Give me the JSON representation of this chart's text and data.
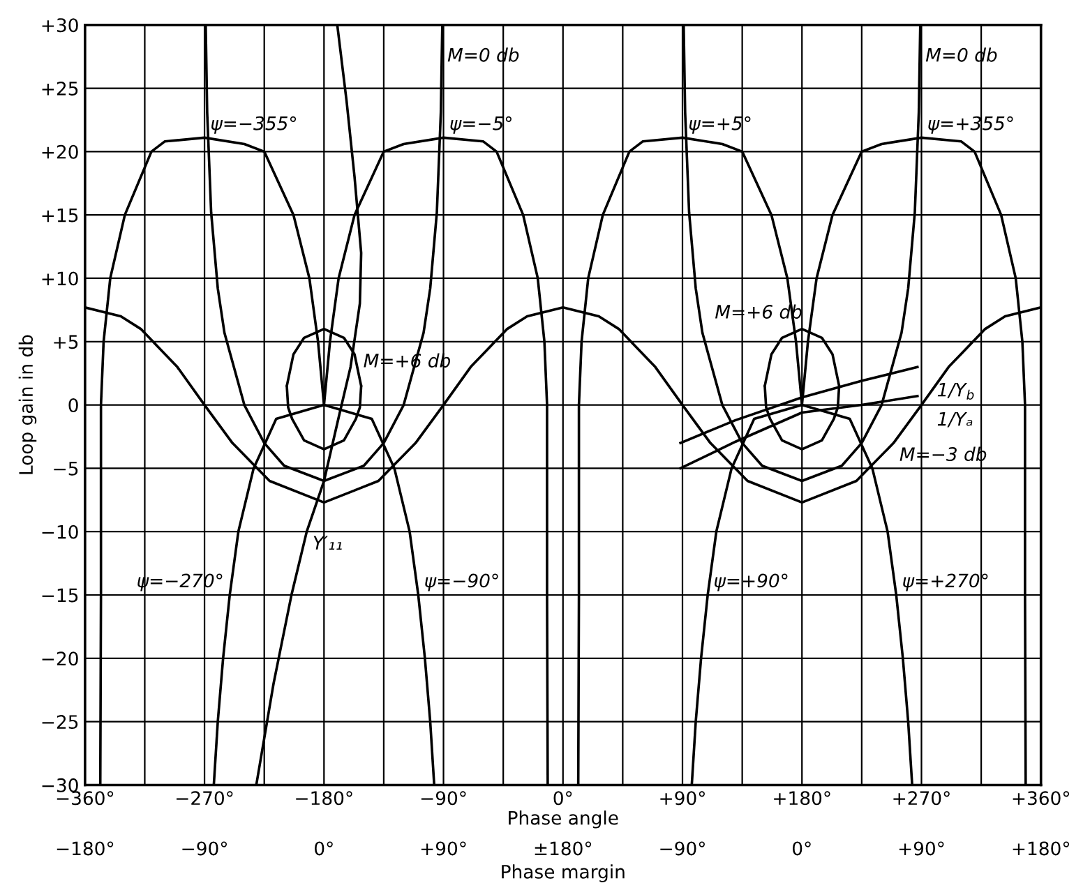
{
  "chart_data": {
    "type": "line",
    "xlabel": "Phase angle",
    "ylabel": "Loop gain in db",
    "xlim": [
      -360,
      360
    ],
    "ylim": [
      -30,
      30
    ],
    "xticks": [
      {
        "value": -360,
        "label": "−360°"
      },
      {
        "value": -315,
        "label": null
      },
      {
        "value": -270,
        "label": "−270°"
      },
      {
        "value": -225,
        "label": null
      },
      {
        "value": -180,
        "label": "−180°"
      },
      {
        "value": -135,
        "label": null
      },
      {
        "value": -90,
        "label": "−90°"
      },
      {
        "value": -45,
        "label": null
      },
      {
        "value": 0,
        "label": "0°"
      },
      {
        "value": 45,
        "label": null
      },
      {
        "value": 90,
        "label": "+90°"
      },
      {
        "value": 135,
        "label": null
      },
      {
        "value": 180,
        "label": "+180°"
      },
      {
        "value": 225,
        "label": null
      },
      {
        "value": 270,
        "label": "+270°"
      },
      {
        "value": 315,
        "label": null
      },
      {
        "value": 360,
        "label": "+360°"
      }
    ],
    "yticks": [
      {
        "value": -30,
        "label": "−30"
      },
      {
        "value": -25,
        "label": "−25"
      },
      {
        "value": -20,
        "label": "−20"
      },
      {
        "value": -15,
        "label": "−15"
      },
      {
        "value": -10,
        "label": "−10"
      },
      {
        "value": -5,
        "label": "−5"
      },
      0,
      {
        "value": 5,
        "label": "+5"
      },
      {
        "value": 10,
        "label": "+10"
      },
      {
        "value": 15,
        "label": "+15"
      },
      {
        "value": 20,
        "label": "+20"
      },
      {
        "value": 25,
        "label": "+25"
      },
      {
        "value": 30,
        "label": "+30"
      }
    ],
    "grid": true,
    "legend": false,
    "marker": "none",
    "line_style": "solid",
    "series": [
      {
        "color": "#000000",
        "x": [
          -348.5,
          -348,
          -348,
          -346,
          -341,
          -330,
          -310,
          -300,
          -270,
          -240,
          -225,
          -203,
          -191,
          -184.5,
          -180
        ],
        "values": [
          -30,
          -15,
          0,
          5,
          10,
          15,
          20,
          20.8,
          21.1,
          20.6,
          20,
          15,
          10,
          5,
          0
        ]
      },
      {
        "color": "#000000",
        "x": [
          -180,
          -175.5,
          -169,
          -157,
          -135,
          -120,
          -90,
          -60,
          -50,
          -30,
          -19,
          -14,
          -12,
          -12,
          -11.5
        ],
        "values": [
          0,
          5,
          10,
          15,
          20,
          20.6,
          21.1,
          20.8,
          20,
          15,
          10,
          5,
          0,
          -15,
          -30
        ]
      },
      {
        "color": "#000000",
        "x": [
          11.5,
          12,
          12,
          14,
          19,
          30,
          50,
          60,
          90,
          120,
          135,
          157,
          169,
          175.5,
          180
        ],
        "values": [
          -30,
          -15,
          0,
          5,
          10,
          15,
          20,
          20.8,
          21.1,
          20.6,
          20,
          15,
          10,
          5,
          0
        ]
      },
      {
        "color": "#000000",
        "x": [
          180,
          184.5,
          191,
          203,
          225,
          240,
          270,
          300,
          310,
          330,
          341,
          346,
          348,
          348,
          348.5
        ],
        "values": [
          0,
          5,
          10,
          15,
          20,
          20.6,
          21.1,
          20.8,
          20,
          15,
          10,
          5,
          0,
          -15,
          -30
        ]
      },
      {
        "color": "#000000",
        "x": [
          -360,
          -333,
          -318,
          -290.5,
          -270,
          -249,
          -221,
          -180,
          -139,
          -111,
          -90,
          -69.5,
          -42,
          -27,
          0,
          27,
          42,
          69.5,
          90,
          111,
          139,
          180,
          221,
          249,
          270,
          290.5,
          318,
          333,
          360
        ],
        "values": [
          7.7,
          7,
          6,
          3,
          0,
          -3,
          -6,
          -7.7,
          -6,
          -3,
          0,
          3,
          6,
          7,
          7.7,
          7,
          6,
          3,
          0,
          -3,
          -6,
          -7.7,
          -6,
          -3,
          0,
          3,
          6,
          7,
          7.7
        ]
      },
      {
        "color": "#000000",
        "x": [
          -269.1,
          -268,
          -265,
          -260,
          -255,
          -240,
          -225,
          -210,
          -180,
          -150,
          -135,
          -120,
          -105,
          -100,
          -95,
          -92,
          -90.9
        ],
        "values": [
          30,
          23.1,
          15.2,
          9.2,
          5.7,
          0,
          -3,
          -4.8,
          -6,
          -4.8,
          -3,
          0,
          5.7,
          9.2,
          15.2,
          23.1,
          30
        ]
      },
      {
        "color": "#000000",
        "x": [
          90.9,
          92,
          95,
          100,
          105,
          120,
          135,
          150,
          180,
          210,
          225,
          240,
          255,
          260,
          265,
          268,
          269.1
        ],
        "values": [
          30,
          23.1,
          15.2,
          9.2,
          5.7,
          0,
          -3,
          -4.8,
          -6,
          -4.8,
          -3,
          0,
          5.7,
          9.2,
          15.2,
          23.1,
          30
        ]
      },
      {
        "color": "#000000",
        "x": [
          -208,
          -203,
          -195,
          -180,
          -165,
          -157,
          -152,
          -180,
          -208,
          -207,
          -204,
          -195,
          -180,
          -165,
          -156,
          -153,
          -152
        ],
        "values": [
          1.5,
          4,
          5.3,
          6,
          5.3,
          4,
          1.5,
          null,
          1.5,
          -0.2,
          -1.1,
          -2.8,
          -3.5,
          -2.8,
          -1.1,
          -0.2,
          1.5
        ]
      },
      {
        "color": "#000000",
        "x": [
          152,
          157,
          165,
          180,
          195,
          203,
          208,
          180,
          152,
          153,
          156,
          165,
          180,
          195,
          204,
          207,
          208
        ],
        "values": [
          1.5,
          4,
          5.3,
          6,
          5.3,
          4,
          1.5,
          null,
          1.5,
          -0.2,
          -1.1,
          -2.8,
          -3.5,
          -2.8,
          -1.1,
          -0.2,
          1.5
        ]
      },
      {
        "color": "#000000",
        "x": [
          -263,
          -260,
          -256,
          -251,
          -244.5,
          -233,
          -216,
          -180
        ],
        "values": [
          -30,
          -25,
          -20,
          -15,
          -10,
          -5,
          -1.1,
          0
        ]
      },
      {
        "color": "#000000",
        "x": [
          -180,
          -144,
          -127,
          -115.5,
          -109,
          -104,
          -100,
          -97
        ],
        "values": [
          0,
          -1.1,
          -5,
          -10,
          -15,
          -20,
          -25,
          -30
        ]
      },
      {
        "color": "#000000",
        "x": [
          97,
          100,
          104,
          109,
          115.5,
          127,
          144,
          180
        ],
        "values": [
          -30,
          -25,
          -20,
          -15,
          -10,
          -5,
          -1.1,
          0
        ]
      },
      {
        "color": "#000000",
        "x": [
          180,
          216,
          233,
          244.5,
          251,
          256,
          260,
          263
        ],
        "values": [
          0,
          -1.1,
          -5,
          -10,
          -15,
          -20,
          -25,
          -30
        ]
      },
      {
        "color": "#000000",
        "x": [
          -231,
          -218,
          -204.5,
          -193,
          -180,
          -169,
          -160,
          -153,
          -152,
          -157,
          -163,
          -170
        ],
        "values": [
          -30,
          -22,
          -15,
          -10,
          -6,
          -1,
          3,
          8,
          12,
          18,
          24,
          30
        ]
      },
      {
        "color": "#000000",
        "x": [
          88.5,
          130,
          180,
          225,
          267
        ],
        "values": [
          -5,
          -2.9,
          -0.6,
          0,
          0.7
        ]
      },
      {
        "color": "#000000",
        "x": [
          88.5,
          130,
          180,
          225,
          267
        ],
        "values": [
          -3,
          -1.2,
          0.6,
          1.9,
          3
        ]
      }
    ],
    "annotations": [
      {
        "text": "M=0 db",
        "x": -91.5,
        "y": 26.5
      },
      {
        "text": "M=0 db",
        "x": 268.6,
        "y": 26.5
      },
      {
        "text": "ψ=−355°",
        "x": -270,
        "y": 21.1
      },
      {
        "text": "ψ=−5°",
        "x": -90,
        "y": 21.1
      },
      {
        "text": "ψ=+5°",
        "x": 90,
        "y": 21.1
      },
      {
        "text": "ψ=+355°",
        "x": 270,
        "y": 21.1
      },
      {
        "text": "M=+6 db",
        "x": -165,
        "y": 5.3
      },
      {
        "text": "M=+6 db",
        "x": 195,
        "y": 5.3
      },
      {
        "text": "ψ=−270°",
        "x": -251,
        "y": -15
      },
      {
        "text": "ψ=−90°",
        "x": -109,
        "y": -15
      },
      {
        "text": "ψ=+90°",
        "x": 109,
        "y": -15
      },
      {
        "text": "ψ=+270°",
        "x": 251,
        "y": -15
      },
      {
        "text": "M=−3 db",
        "x": 249,
        "y": -3
      },
      {
        "text": "1/Yₐ",
        "x": 267,
        "y": 0.7
      },
      {
        "text": "1/Y$_{b}$",
        "x": 267,
        "y": 3
      },
      {
        "text": "Y′₁₁",
        "x": -193,
        "y": -10
      },
      "−180°",
      "−90°",
      "0°",
      "+90°",
      "±180°",
      "−90°",
      "0°",
      "+90°",
      "+180°",
      "Phase margin"
    ]
  }
}
